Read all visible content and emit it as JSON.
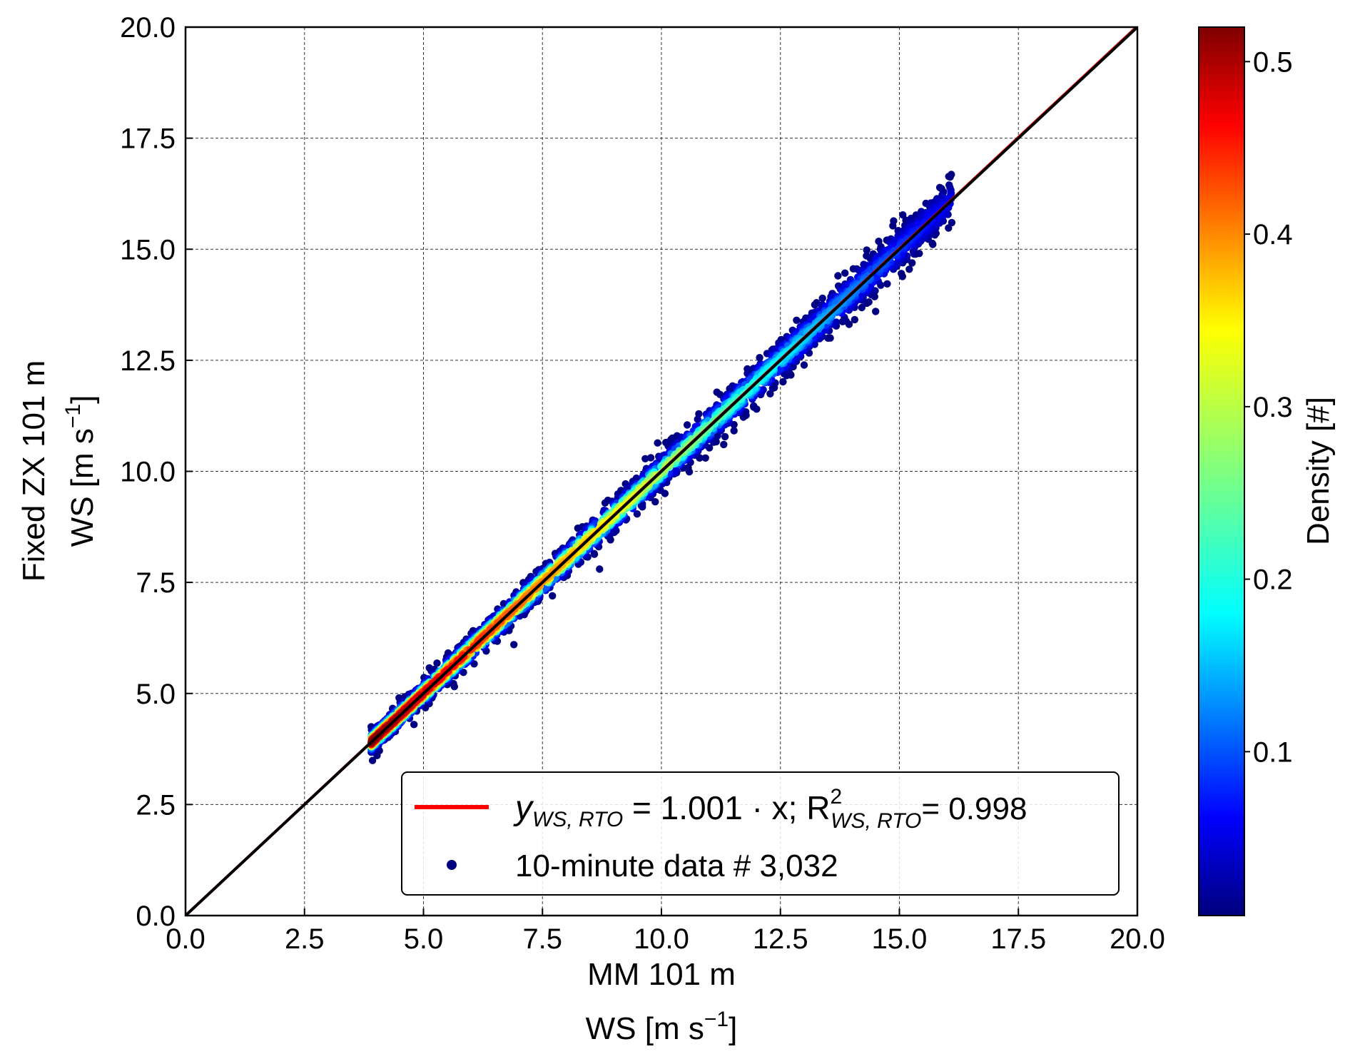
{
  "chart_data": {
    "type": "scatter",
    "xlabel_line1": "MM 101 m",
    "xlabel_line2": "WS [m s",
    "ylabel_line1": "Fixed ZX 101 m",
    "ylabel_line2": "WS [m s",
    "unit_exponent": "−1",
    "xlim": [
      0,
      20
    ],
    "ylim": [
      0,
      20
    ],
    "xticks": [
      "0.0",
      "2.5",
      "5.0",
      "7.5",
      "10.0",
      "12.5",
      "15.0",
      "17.5",
      "20.0"
    ],
    "yticks": [
      "0.0",
      "2.5",
      "5.0",
      "7.5",
      "10.0",
      "12.5",
      "15.0",
      "17.5",
      "20.0"
    ],
    "grid": true,
    "legend_placement": "lower-right",
    "legend": {
      "fit_label_y": "y",
      "fit_label_sub": "WS, RTO",
      "fit_label_eq": " = 1.001 · x; R",
      "fit_label_r2_sup": "2",
      "fit_label_r2_sub": "WS, RTO",
      "fit_label_r2_val": "= 0.998",
      "scatter_label": "10-minute data # 3,032"
    },
    "fit_line": {
      "slope": 1.001,
      "r2": 0.998,
      "color": "#ff0000"
    },
    "identity_line": {
      "slope": 1.0,
      "color": "#000000"
    },
    "n_points": 3032,
    "data_range": {
      "x_min": 3.9,
      "x_max": 16.1
    },
    "outliers": [
      [
        8.3,
        8.2
      ],
      [
        8.7,
        7.8
      ],
      [
        6.9,
        6.1
      ],
      [
        12.0,
        11.4
      ],
      [
        12.7,
        12.2
      ],
      [
        14.5,
        13.6
      ],
      [
        14.6,
        15.0
      ],
      [
        15.9,
        16.2
      ],
      [
        16.1,
        15.6
      ],
      [
        6.0,
        6.2
      ],
      [
        5.5,
        5.2
      ],
      [
        4.8,
        4.3
      ],
      [
        10.8,
        10.3
      ],
      [
        13.5,
        13.0
      ],
      [
        9.6,
        9.2
      ]
    ],
    "colorbar": {
      "label": "Density [#]",
      "ticks": [
        "0.1",
        "0.2",
        "0.3",
        "0.4",
        "0.5"
      ],
      "tick_values": [
        0.1,
        0.2,
        0.3,
        0.4,
        0.5
      ],
      "range": [
        0.005,
        0.52
      ],
      "colormap": "jet"
    }
  }
}
